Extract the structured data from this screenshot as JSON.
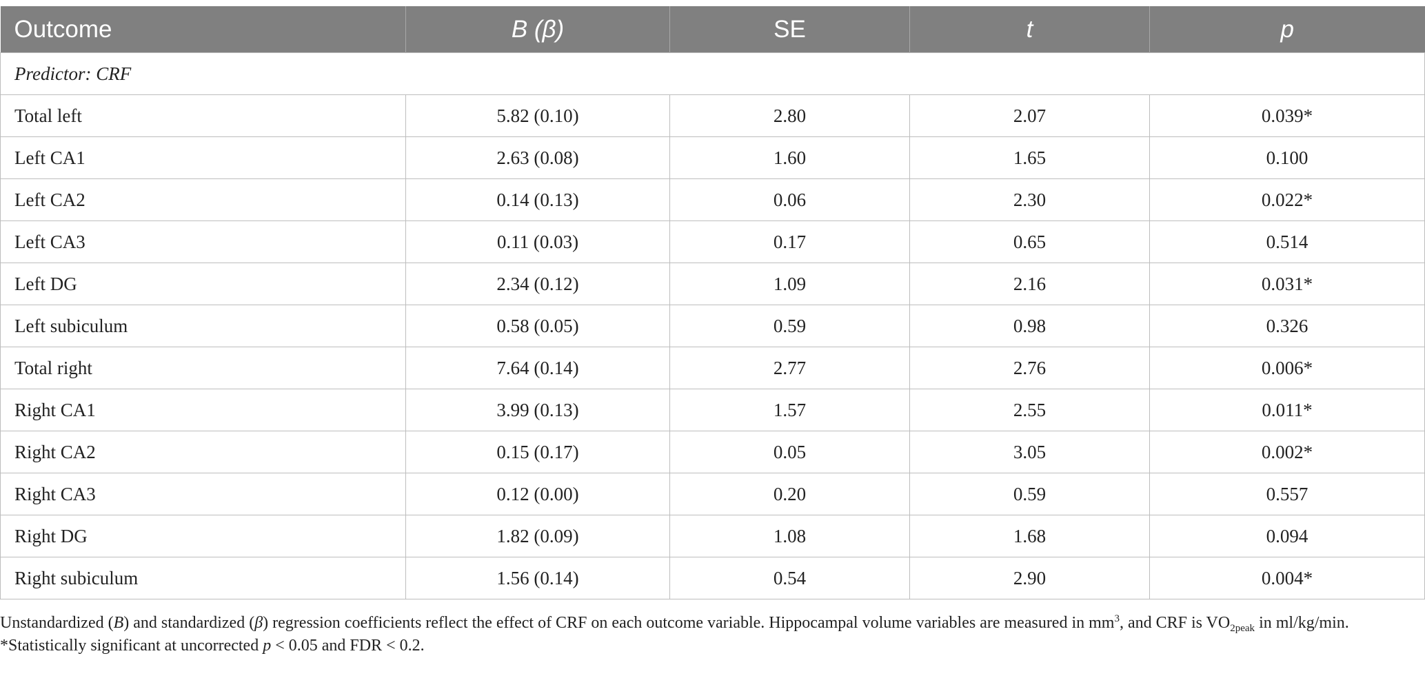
{
  "table": {
    "headers": [
      "Outcome",
      "B (β)",
      "SE",
      "t",
      "p"
    ],
    "section_label": "Predictor: CRF",
    "rows": [
      [
        "Total left",
        "5.82 (0.10)",
        "2.80",
        "2.07",
        "0.039*"
      ],
      [
        "Left CA1",
        "2.63 (0.08)",
        "1.60",
        "1.65",
        "0.100"
      ],
      [
        "Left CA2",
        "0.14 (0.13)",
        "0.06",
        "2.30",
        "0.022*"
      ],
      [
        "Left CA3",
        "0.11 (0.03)",
        "0.17",
        "0.65",
        "0.514"
      ],
      [
        "Left DG",
        "2.34 (0.12)",
        "1.09",
        "2.16",
        "0.031*"
      ],
      [
        "Left subiculum",
        "0.58 (0.05)",
        "0.59",
        "0.98",
        "0.326"
      ],
      [
        "Total right",
        "7.64 (0.14)",
        "2.77",
        "2.76",
        "0.006*"
      ],
      [
        "Right CA1",
        "3.99 (0.13)",
        "1.57",
        "2.55",
        "0.011*"
      ],
      [
        "Right CA2",
        "0.15 (0.17)",
        "0.05",
        "3.05",
        "0.002*"
      ],
      [
        "Right CA3",
        "0.12 (0.00)",
        "0.20",
        "0.59",
        "0.557"
      ],
      [
        "Right DG",
        "1.82 (0.09)",
        "1.08",
        "1.68",
        "0.094"
      ],
      [
        "Right subiculum",
        "1.56 (0.14)",
        "0.54",
        "2.90",
        "0.004*"
      ]
    ]
  },
  "notes": {
    "line1": {
      "t1": "Unstandardized (",
      "b": "B",
      "t2": ") and standardized (",
      "beta": "β",
      "t3": ") regression coefficients reflect the effect of CRF on each outcome variable. Hippocampal volume variables are measured in mm",
      "exp": "3",
      "t4": ", and CRF is VO",
      "sub": "2peak",
      "t5": " in ml/kg/min."
    },
    "line2": {
      "t1": "*Statistically significant at uncorrected ",
      "p": "p",
      "t2": " < 0.05 and FDR < 0.2."
    }
  }
}
